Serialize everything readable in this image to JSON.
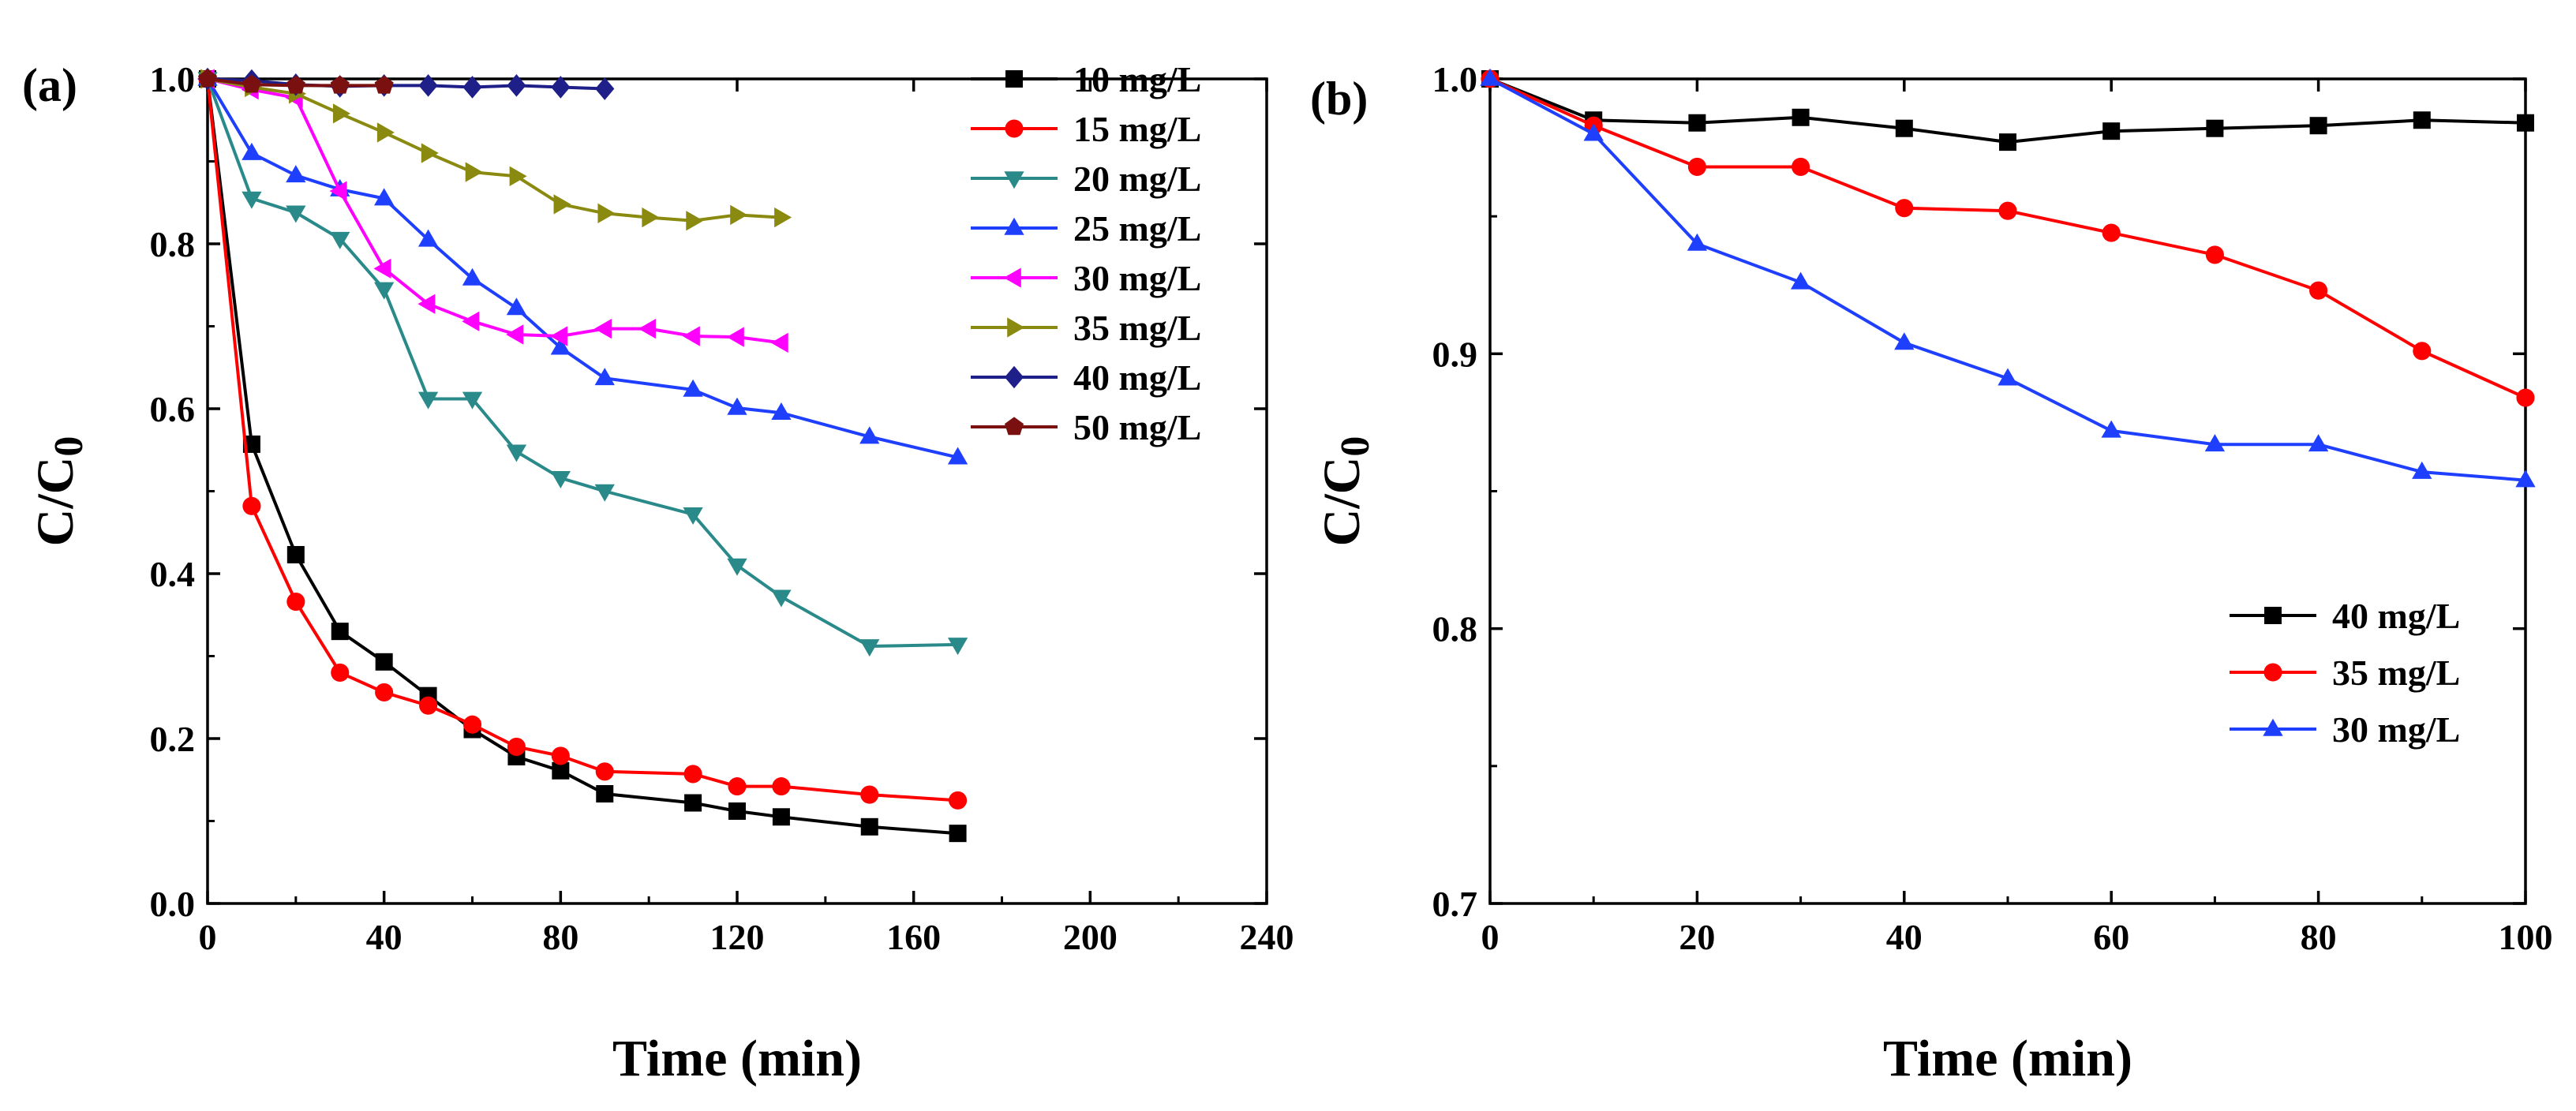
{
  "chart_data": [
    {
      "type": "line",
      "panel_label": "(a)",
      "xlabel": "Time (min)",
      "ylabel": "C/C0",
      "xlim": [
        0,
        240
      ],
      "ylim": [
        0,
        1.0
      ],
      "xticks": [
        0,
        40,
        80,
        120,
        160,
        200,
        240
      ],
      "yticks": [
        0.0,
        0.2,
        0.4,
        0.6,
        0.8,
        1.0
      ],
      "xtick_labels": [
        "0",
        "40",
        "80",
        "120",
        "160",
        "200",
        "240"
      ],
      "ytick_labels": [
        "0.0",
        "0.2",
        "0.4",
        "0.6",
        "0.8",
        "1.0"
      ],
      "legend_position": "top-right",
      "series": [
        {
          "name": "10 mg/L",
          "color": "#000000",
          "marker": "square",
          "x": [
            0,
            10,
            20,
            30,
            40,
            50,
            60,
            70,
            80,
            90,
            110,
            120,
            130,
            150,
            170
          ],
          "y": [
            1.0,
            0.557,
            0.423,
            0.33,
            0.293,
            0.252,
            0.211,
            0.178,
            0.161,
            0.133,
            0.122,
            0.112,
            0.105,
            0.093,
            0.085
          ]
        },
        {
          "name": "15 mg/L",
          "color": "#ff0000",
          "marker": "circle",
          "x": [
            0,
            10,
            20,
            30,
            40,
            50,
            60,
            70,
            80,
            90,
            110,
            120,
            130,
            150,
            170
          ],
          "y": [
            1.0,
            0.482,
            0.366,
            0.28,
            0.256,
            0.24,
            0.217,
            0.19,
            0.179,
            0.16,
            0.157,
            0.142,
            0.142,
            0.132,
            0.125
          ]
        },
        {
          "name": "20 mg/L",
          "color": "#2a8a8a",
          "marker": "triangle-down",
          "x": [
            0,
            10,
            20,
            30,
            40,
            50,
            60,
            70,
            80,
            90,
            110,
            120,
            130,
            150,
            170
          ],
          "y": [
            1.0,
            0.855,
            0.838,
            0.806,
            0.745,
            0.612,
            0.612,
            0.548,
            0.516,
            0.5,
            0.472,
            0.41,
            0.372,
            0.312,
            0.314
          ]
        },
        {
          "name": "25 mg/L",
          "color": "#1f3fff",
          "marker": "triangle-up",
          "x": [
            0,
            10,
            20,
            30,
            40,
            50,
            60,
            70,
            80,
            90,
            110,
            120,
            130,
            150,
            170
          ],
          "y": [
            1.0,
            0.91,
            0.883,
            0.866,
            0.855,
            0.805,
            0.758,
            0.722,
            0.674,
            0.637,
            0.623,
            0.601,
            0.595,
            0.566,
            0.541
          ]
        },
        {
          "name": "30 mg/L",
          "color": "#ff00ff",
          "marker": "triangle-left",
          "x": [
            0,
            10,
            20,
            30,
            40,
            50,
            60,
            70,
            80,
            90,
            100,
            110,
            120,
            130
          ],
          "y": [
            1.0,
            0.987,
            0.977,
            0.864,
            0.77,
            0.727,
            0.706,
            0.69,
            0.688,
            0.697,
            0.697,
            0.688,
            0.687,
            0.68
          ]
        },
        {
          "name": "35 mg/L",
          "color": "#8a8a10",
          "marker": "triangle-right",
          "x": [
            0,
            10,
            20,
            30,
            40,
            50,
            60,
            70,
            80,
            90,
            100,
            110,
            120,
            130
          ],
          "y": [
            1.0,
            0.99,
            0.982,
            0.958,
            0.935,
            0.91,
            0.887,
            0.882,
            0.848,
            0.837,
            0.832,
            0.828,
            0.835,
            0.832
          ]
        },
        {
          "name": "40 mg/L",
          "color": "#1f1f8a",
          "marker": "diamond",
          "x": [
            0,
            10,
            20,
            30,
            40,
            50,
            60,
            70,
            80,
            90
          ],
          "y": [
            1.0,
            0.998,
            0.993,
            0.991,
            0.992,
            0.992,
            0.99,
            0.992,
            0.99,
            0.988
          ]
        },
        {
          "name": "50 mg/L",
          "color": "#7a1010",
          "marker": "pentagon",
          "x": [
            0,
            10,
            20,
            30,
            40
          ],
          "y": [
            1.0,
            0.993,
            0.992,
            0.992,
            0.992
          ]
        }
      ]
    },
    {
      "type": "line",
      "panel_label": "(b)",
      "xlabel": "Time (min)",
      "ylabel": "C/C0",
      "xlim": [
        0,
        100
      ],
      "ylim": [
        0.7,
        1.0
      ],
      "xticks": [
        0,
        20,
        40,
        60,
        80,
        100
      ],
      "yticks": [
        0.7,
        0.8,
        0.9,
        1.0
      ],
      "xtick_labels": [
        "0",
        "20",
        "40",
        "60",
        "80",
        "100"
      ],
      "ytick_labels": [
        "0.7",
        "0.8",
        "0.9",
        "1.0"
      ],
      "legend_position": "middle-right",
      "series": [
        {
          "name": "40 mg/L",
          "color": "#000000",
          "marker": "square",
          "x": [
            0,
            10,
            20,
            30,
            40,
            50,
            60,
            70,
            80,
            90,
            100
          ],
          "y": [
            1.0,
            0.985,
            0.984,
            0.986,
            0.982,
            0.977,
            0.981,
            0.982,
            0.983,
            0.985,
            0.984
          ]
        },
        {
          "name": "35 mg/L",
          "color": "#ff0000",
          "marker": "circle",
          "x": [
            0,
            10,
            20,
            30,
            40,
            50,
            60,
            70,
            80,
            90,
            100
          ],
          "y": [
            1.0,
            0.983,
            0.968,
            0.968,
            0.953,
            0.952,
            0.944,
            0.936,
            0.923,
            0.901,
            0.884
          ]
        },
        {
          "name": "30 mg/L",
          "color": "#1f3fff",
          "marker": "triangle-up",
          "x": [
            0,
            10,
            20,
            30,
            40,
            50,
            60,
            70,
            80,
            90,
            100
          ],
          "y": [
            1.0,
            0.98,
            0.94,
            0.926,
            0.904,
            0.891,
            0.872,
            0.867,
            0.867,
            0.857,
            0.854
          ]
        }
      ]
    }
  ]
}
